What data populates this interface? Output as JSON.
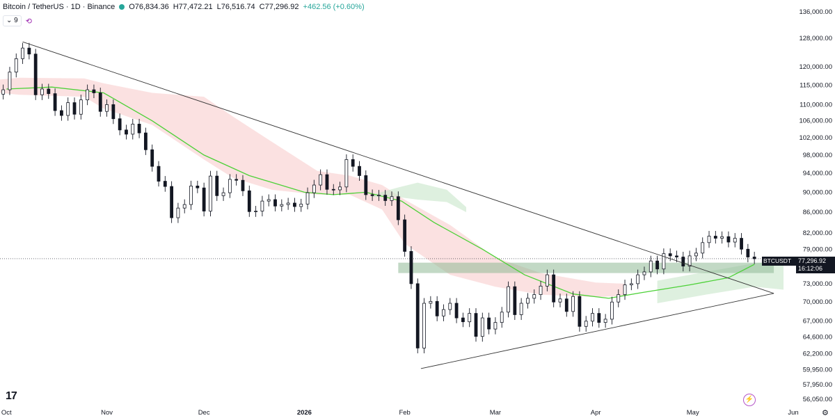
{
  "header": {
    "symbol": "Bitcoin / TetherUS · 1D · Binance",
    "open": "O76,834.36",
    "high": "H77,472.21",
    "low": "L76,516.74",
    "close": "C77,296.92",
    "change": "+462.56 (+0.60%)",
    "indicator_count": "9"
  },
  "price_tag": {
    "ticker": "BTCUSDT",
    "price": "77,296.92",
    "countdown": "16:12:06"
  },
  "colors": {
    "up": "#26a69a",
    "candle": "#131722",
    "ma_line": "#4cd137",
    "cloud_bear": "#f8c9c9",
    "cloud_bull": "#c8e6c9",
    "zone": "#8fb996"
  },
  "chart_data": {
    "type": "candlestick",
    "y_axis": {
      "scale": "log",
      "ticks": [
        "136,000.00",
        "128,000.00",
        "120,000.00",
        "115,000.00",
        "110,000.00",
        "106,000.00",
        "102,000.00",
        "98,000.00",
        "94,000.00",
        "90,000.00",
        "86,000.00",
        "82,000.00",
        "79,000.00",
        "73,000.00",
        "70,000.00",
        "67,000.00",
        "64,600.00",
        "62,200.00",
        "59,950.00",
        "57,950.00",
        "56,050.00"
      ],
      "range": [
        55500,
        138000
      ]
    },
    "x_axis": {
      "labels": [
        {
          "text": "Oct",
          "date": "2025-10-01",
          "bold": false
        },
        {
          "text": "Nov",
          "date": "2025-11-01",
          "bold": false
        },
        {
          "text": "Dec",
          "date": "2025-12-01",
          "bold": false
        },
        {
          "text": "2026",
          "date": "2026-01-01",
          "bold": true
        },
        {
          "text": "Feb",
          "date": "2026-02-01",
          "bold": false
        },
        {
          "text": "Mar",
          "date": "2026-03-01",
          "bold": false
        },
        {
          "text": "Apr",
          "date": "2026-04-01",
          "bold": false
        },
        {
          "text": "May",
          "date": "2026-05-01",
          "bold": false
        },
        {
          "text": "Jun",
          "date": "2026-06-01",
          "bold": false
        }
      ],
      "range": [
        "2025-09-29",
        "2026-06-01"
      ]
    },
    "series_closes": [
      [
        "2025-09-30",
        113800
      ],
      [
        "2025-10-02",
        118500
      ],
      [
        "2025-10-04",
        122200
      ],
      [
        "2025-10-06",
        125200
      ],
      [
        "2025-10-08",
        123500
      ],
      [
        "2025-10-10",
        112500
      ],
      [
        "2025-10-12",
        114000
      ],
      [
        "2025-10-14",
        112800
      ],
      [
        "2025-10-16",
        108500
      ],
      [
        "2025-10-18",
        107300
      ],
      [
        "2025-10-20",
        110500
      ],
      [
        "2025-10-22",
        107600
      ],
      [
        "2025-10-24",
        111200
      ],
      [
        "2025-10-26",
        113800
      ],
      [
        "2025-10-28",
        113000
      ],
      [
        "2025-10-30",
        108300
      ],
      [
        "2025-11-01",
        110000
      ],
      [
        "2025-11-03",
        106500
      ],
      [
        "2025-11-05",
        103800
      ],
      [
        "2025-11-07",
        102800
      ],
      [
        "2025-11-09",
        105200
      ],
      [
        "2025-11-11",
        103100
      ],
      [
        "2025-11-13",
        99200
      ],
      [
        "2025-11-15",
        95500
      ],
      [
        "2025-11-17",
        92300
      ],
      [
        "2025-11-19",
        91200
      ],
      [
        "2025-11-21",
        84900
      ],
      [
        "2025-11-23",
        86800
      ],
      [
        "2025-11-25",
        87500
      ],
      [
        "2025-11-27",
        91300
      ],
      [
        "2025-11-29",
        90900
      ],
      [
        "2025-12-01",
        86200
      ],
      [
        "2025-12-03",
        93400
      ],
      [
        "2025-12-05",
        89300
      ],
      [
        "2025-12-07",
        89900
      ],
      [
        "2025-12-09",
        92700
      ],
      [
        "2025-12-11",
        92500
      ],
      [
        "2025-12-13",
        90300
      ],
      [
        "2025-12-15",
        86100
      ],
      [
        "2025-12-17",
        86200
      ],
      [
        "2025-12-19",
        88200
      ],
      [
        "2025-12-21",
        88500
      ],
      [
        "2025-12-23",
        87200
      ],
      [
        "2025-12-25",
        87500
      ],
      [
        "2025-12-27",
        87800
      ],
      [
        "2025-12-29",
        87100
      ],
      [
        "2025-12-31",
        87600
      ],
      [
        "2026-01-02",
        89900
      ],
      [
        "2026-01-04",
        91500
      ],
      [
        "2026-01-06",
        93700
      ],
      [
        "2026-01-08",
        90600
      ],
      [
        "2026-01-10",
        90500
      ],
      [
        "2026-01-12",
        91100
      ],
      [
        "2026-01-14",
        97000
      ],
      [
        "2026-01-16",
        95500
      ],
      [
        "2026-01-18",
        93500
      ],
      [
        "2026-01-20",
        89500
      ],
      [
        "2026-01-22",
        89300
      ],
      [
        "2026-01-24",
        89400
      ],
      [
        "2026-01-26",
        88300
      ],
      [
        "2026-01-28",
        89100
      ],
      [
        "2026-01-30",
        84500
      ],
      [
        "2026-02-01",
        78600
      ],
      [
        "2026-02-03",
        73000
      ],
      [
        "2026-02-05",
        63000
      ],
      [
        "2026-02-07",
        69800
      ],
      [
        "2026-02-09",
        70100
      ],
      [
        "2026-02-11",
        67800
      ],
      [
        "2026-02-13",
        68800
      ],
      [
        "2026-02-15",
        69800
      ],
      [
        "2026-02-17",
        67500
      ],
      [
        "2026-02-19",
        66900
      ],
      [
        "2026-02-21",
        68200
      ],
      [
        "2026-02-23",
        64700
      ],
      [
        "2026-02-25",
        67500
      ],
      [
        "2026-02-27",
        65800
      ],
      [
        "2026-03-01",
        66800
      ],
      [
        "2026-03-03",
        68400
      ],
      [
        "2026-03-05",
        72500
      ],
      [
        "2026-03-07",
        68000
      ],
      [
        "2026-03-09",
        69800
      ],
      [
        "2026-03-11",
        70600
      ],
      [
        "2026-03-13",
        71200
      ],
      [
        "2026-03-15",
        72600
      ],
      [
        "2026-03-17",
        74500
      ],
      [
        "2026-03-19",
        70000
      ],
      [
        "2026-03-21",
        70500
      ],
      [
        "2026-03-23",
        68500
      ],
      [
        "2026-03-25",
        70900
      ],
      [
        "2026-03-27",
        66200
      ],
      [
        "2026-03-29",
        67000
      ],
      [
        "2026-03-31",
        68200
      ],
      [
        "2026-04-02",
        66800
      ],
      [
        "2026-04-04",
        67300
      ],
      [
        "2026-04-06",
        70000
      ],
      [
        "2026-04-08",
        71200
      ],
      [
        "2026-04-10",
        72800
      ],
      [
        "2026-04-12",
        73000
      ],
      [
        "2026-04-14",
        74500
      ],
      [
        "2026-04-16",
        75000
      ],
      [
        "2026-04-18",
        76900
      ],
      [
        "2026-04-20",
        75500
      ],
      [
        "2026-04-22",
        78200
      ],
      [
        "2026-04-24",
        77800
      ],
      [
        "2026-04-26",
        77600
      ],
      [
        "2026-04-28",
        76000
      ],
      [
        "2026-04-30",
        77800
      ],
      [
        "2026-05-02",
        78300
      ],
      [
        "2026-05-04",
        80200
      ],
      [
        "2026-05-06",
        81400
      ],
      [
        "2026-05-08",
        81000
      ],
      [
        "2026-05-10",
        81300
      ],
      [
        "2026-05-12",
        80300
      ],
      [
        "2026-05-14",
        81000
      ],
      [
        "2026-05-16",
        79000
      ],
      [
        "2026-05-18",
        77600
      ],
      [
        "2026-05-20",
        77300
      ]
    ],
    "moving_average": [
      [
        "2025-10-01",
        114000
      ],
      [
        "2025-10-15",
        114500
      ],
      [
        "2025-10-31",
        113000
      ],
      [
        "2025-11-15",
        106000
      ],
      [
        "2025-12-01",
        98000
      ],
      [
        "2025-12-15",
        93500
      ],
      [
        "2026-01-01",
        90000
      ],
      [
        "2026-01-10",
        89500
      ],
      [
        "2026-01-20",
        90000
      ],
      [
        "2026-01-31",
        88200
      ],
      [
        "2026-02-10",
        84000
      ],
      [
        "2026-02-25",
        79000
      ],
      [
        "2026-03-10",
        74500
      ],
      [
        "2026-03-25",
        71300
      ],
      [
        "2026-04-05",
        70600
      ],
      [
        "2026-04-15",
        71500
      ],
      [
        "2026-04-30",
        72800
      ],
      [
        "2026-05-12",
        74000
      ],
      [
        "2026-05-20",
        76300
      ]
    ],
    "trendlines": [
      {
        "from": [
          "2025-10-06",
          127000
        ],
        "to": [
          "2026-05-26",
          71400
        ]
      },
      {
        "from": [
          "2026-02-06",
          60100
        ],
        "to": [
          "2026-05-26",
          71400
        ]
      }
    ],
    "support_zone": {
      "low": 74800,
      "high": 76600,
      "from": "2026-01-30",
      "to": "2026-05-26"
    },
    "last_price": 77296.92,
    "cloud_bearish": [
      [
        [
          "2025-09-29",
          116500
        ],
        [
          "2025-10-05",
          117000
        ],
        [
          "2025-10-25",
          116800
        ],
        [
          "2025-10-31",
          115500
        ],
        [
          "2025-11-15",
          113000
        ],
        [
          "2025-12-01",
          112000
        ],
        [
          "2025-12-10",
          107000
        ],
        [
          "2025-12-22",
          101000
        ],
        [
          "2026-01-05",
          94500
        ],
        [
          "2026-01-15",
          93500
        ],
        [
          "2026-01-25",
          91500
        ],
        [
          "2026-02-01",
          88500
        ],
        [
          "2026-02-15",
          83500
        ],
        [
          "2026-03-01",
          77500
        ],
        [
          "2026-03-15",
          74800
        ],
        [
          "2026-04-01",
          73200
        ],
        [
          "2026-04-10",
          73000
        ]
      ],
      [
        [
          "2026-04-10",
          71000
        ],
        [
          "2026-04-01",
          70800
        ],
        [
          "2026-03-15",
          71200
        ],
        [
          "2026-03-01",
          72500
        ],
        [
          "2026-02-15",
          74500
        ],
        [
          "2026-02-01",
          80000
        ],
        [
          "2026-01-25",
          86500
        ],
        [
          "2026-01-15",
          89500
        ],
        [
          "2026-01-05",
          89500
        ],
        [
          "2025-12-22",
          90500
        ],
        [
          "2025-12-10",
          93000
        ],
        [
          "2025-12-01",
          97000
        ],
        [
          "2025-11-15",
          105000
        ],
        [
          "2025-10-31",
          109000
        ],
        [
          "2025-10-25",
          112000
        ],
        [
          "2025-10-05",
          112500
        ],
        [
          "2025-09-29",
          113000
        ]
      ]
    ],
    "cloud_bullish": [
      [
        [
          "2026-01-22",
          89500
        ],
        [
          "2026-01-30",
          91000
        ],
        [
          "2026-02-05",
          92000
        ],
        [
          "2026-02-14",
          90500
        ],
        [
          "2026-02-20",
          87000
        ]
      ],
      [
        [
          "2026-02-20",
          86000
        ],
        [
          "2026-02-14",
          88000
        ],
        [
          "2026-02-05",
          88500
        ],
        [
          "2026-01-30",
          89000
        ],
        [
          "2026-01-22",
          89000
        ]
      ],
      [
        [
          "2026-04-20",
          73500
        ],
        [
          "2026-05-05",
          75000
        ],
        [
          "2026-05-20",
          76500
        ],
        [
          "2026-05-29",
          76800
        ]
      ],
      [
        [
          "2026-05-29",
          72000
        ],
        [
          "2026-05-20",
          72500
        ],
        [
          "2026-05-05",
          71200
        ],
        [
          "2026-04-20",
          69800
        ]
      ]
    ]
  }
}
